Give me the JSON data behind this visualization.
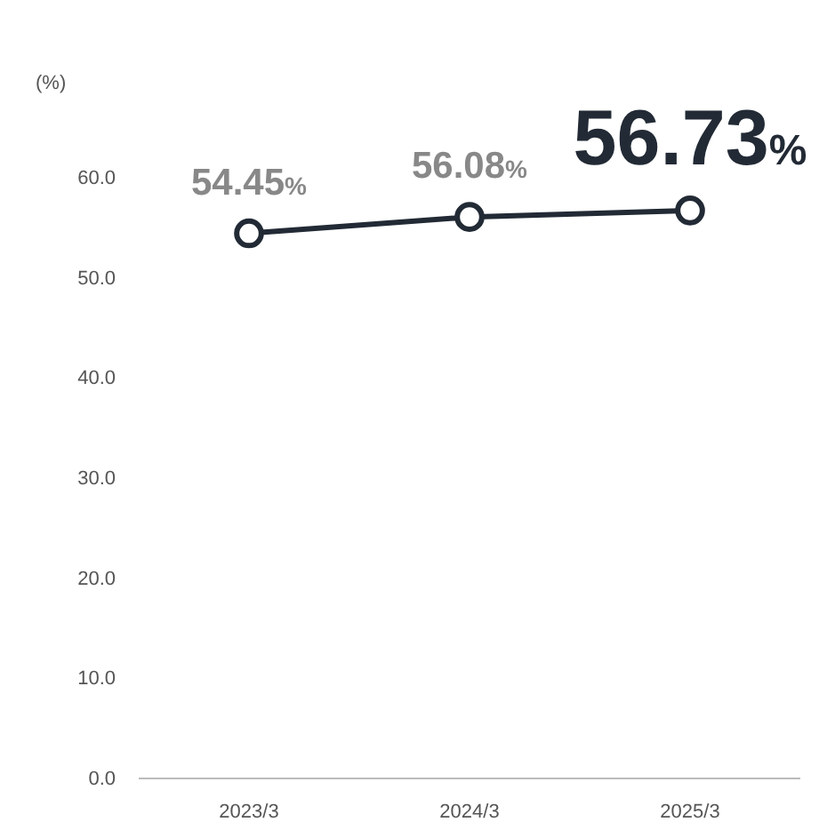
{
  "chart_data": {
    "type": "line",
    "ylabel": "(%)",
    "categories": [
      "2023/3",
      "2024/3",
      "2025/3"
    ],
    "series": [
      {
        "color": "#222a35",
        "values": [
          54.45,
          56.08,
          56.73
        ]
      }
    ],
    "value_labels": [
      "54.45%",
      "56.08%",
      "56.73%"
    ],
    "ylim": [
      0,
      60
    ],
    "yticks": [
      {
        "value": 0,
        "label": "0.0"
      },
      {
        "value": 10,
        "label": "10.0"
      },
      {
        "value": 20,
        "label": "20.0"
      },
      {
        "value": 30,
        "label": "30.0"
      },
      {
        "value": 40,
        "label": "40.0"
      },
      {
        "value": 50,
        "label": "50.0"
      },
      {
        "value": 60,
        "label": "60.0"
      }
    ],
    "grid": false,
    "marker": "circle",
    "line_style": "solid"
  }
}
